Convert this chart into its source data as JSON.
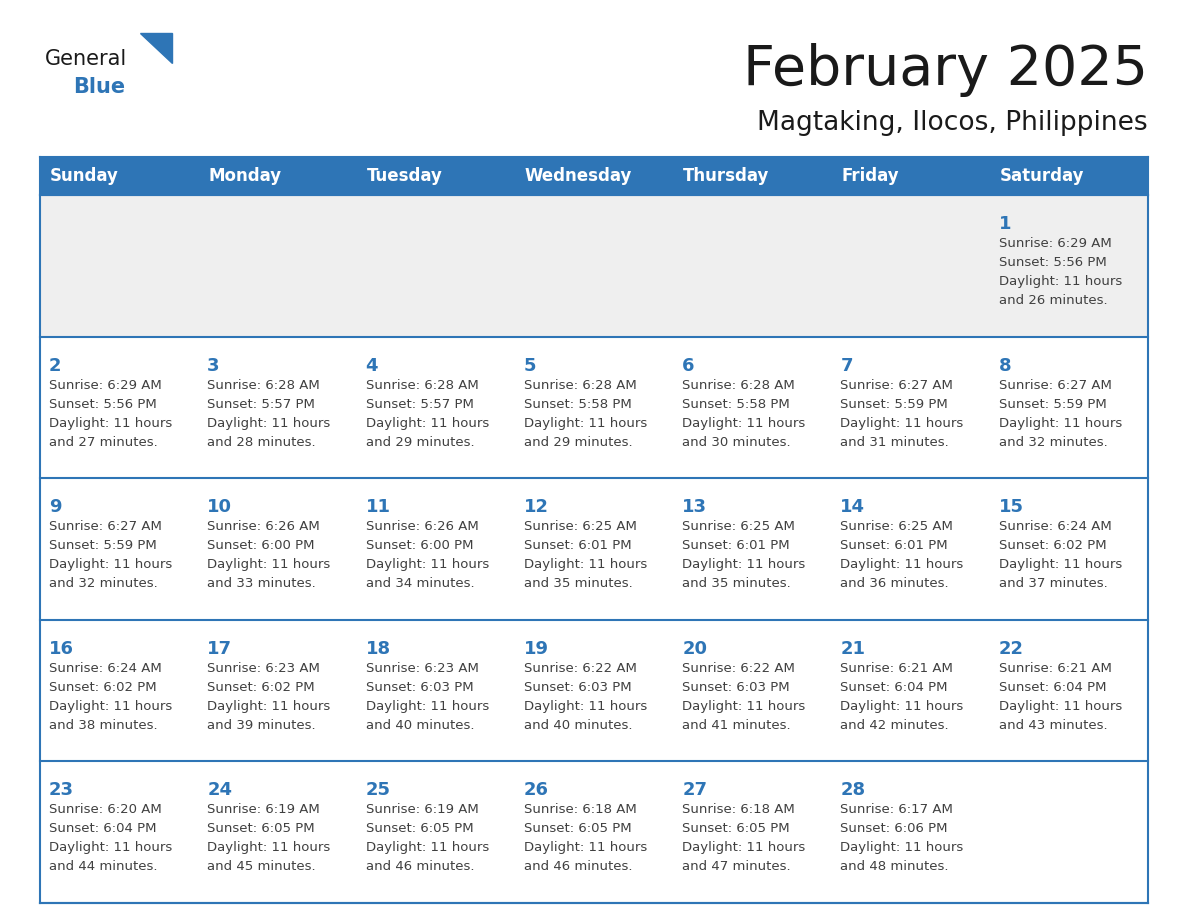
{
  "title": "February 2025",
  "subtitle": "Magtaking, Ilocos, Philippines",
  "days_of_week": [
    "Sunday",
    "Monday",
    "Tuesday",
    "Wednesday",
    "Thursday",
    "Friday",
    "Saturday"
  ],
  "header_bg": "#2e75b6",
  "header_text": "#ffffff",
  "cell_bg_light": "#efefef",
  "cell_bg_white": "#ffffff",
  "border_color": "#2e75b6",
  "day_num_color": "#2e75b6",
  "text_color": "#404040",
  "logo_general_color": "#1a1a1a",
  "logo_blue_color": "#2e75b6",
  "calendar_data": [
    [
      null,
      null,
      null,
      null,
      null,
      null,
      {
        "day": 1,
        "sunrise": "6:29 AM",
        "sunset": "5:56 PM",
        "daylight": "11 hours and 26 minutes."
      }
    ],
    [
      {
        "day": 2,
        "sunrise": "6:29 AM",
        "sunset": "5:56 PM",
        "daylight": "11 hours and 27 minutes."
      },
      {
        "day": 3,
        "sunrise": "6:28 AM",
        "sunset": "5:57 PM",
        "daylight": "11 hours and 28 minutes."
      },
      {
        "day": 4,
        "sunrise": "6:28 AM",
        "sunset": "5:57 PM",
        "daylight": "11 hours and 29 minutes."
      },
      {
        "day": 5,
        "sunrise": "6:28 AM",
        "sunset": "5:58 PM",
        "daylight": "11 hours and 29 minutes."
      },
      {
        "day": 6,
        "sunrise": "6:28 AM",
        "sunset": "5:58 PM",
        "daylight": "11 hours and 30 minutes."
      },
      {
        "day": 7,
        "sunrise": "6:27 AM",
        "sunset": "5:59 PM",
        "daylight": "11 hours and 31 minutes."
      },
      {
        "day": 8,
        "sunrise": "6:27 AM",
        "sunset": "5:59 PM",
        "daylight": "11 hours and 32 minutes."
      }
    ],
    [
      {
        "day": 9,
        "sunrise": "6:27 AM",
        "sunset": "5:59 PM",
        "daylight": "11 hours and 32 minutes."
      },
      {
        "day": 10,
        "sunrise": "6:26 AM",
        "sunset": "6:00 PM",
        "daylight": "11 hours and 33 minutes."
      },
      {
        "day": 11,
        "sunrise": "6:26 AM",
        "sunset": "6:00 PM",
        "daylight": "11 hours and 34 minutes."
      },
      {
        "day": 12,
        "sunrise": "6:25 AM",
        "sunset": "6:01 PM",
        "daylight": "11 hours and 35 minutes."
      },
      {
        "day": 13,
        "sunrise": "6:25 AM",
        "sunset": "6:01 PM",
        "daylight": "11 hours and 35 minutes."
      },
      {
        "day": 14,
        "sunrise": "6:25 AM",
        "sunset": "6:01 PM",
        "daylight": "11 hours and 36 minutes."
      },
      {
        "day": 15,
        "sunrise": "6:24 AM",
        "sunset": "6:02 PM",
        "daylight": "11 hours and 37 minutes."
      }
    ],
    [
      {
        "day": 16,
        "sunrise": "6:24 AM",
        "sunset": "6:02 PM",
        "daylight": "11 hours and 38 minutes."
      },
      {
        "day": 17,
        "sunrise": "6:23 AM",
        "sunset": "6:02 PM",
        "daylight": "11 hours and 39 minutes."
      },
      {
        "day": 18,
        "sunrise": "6:23 AM",
        "sunset": "6:03 PM",
        "daylight": "11 hours and 40 minutes."
      },
      {
        "day": 19,
        "sunrise": "6:22 AM",
        "sunset": "6:03 PM",
        "daylight": "11 hours and 40 minutes."
      },
      {
        "day": 20,
        "sunrise": "6:22 AM",
        "sunset": "6:03 PM",
        "daylight": "11 hours and 41 minutes."
      },
      {
        "day": 21,
        "sunrise": "6:21 AM",
        "sunset": "6:04 PM",
        "daylight": "11 hours and 42 minutes."
      },
      {
        "day": 22,
        "sunrise": "6:21 AM",
        "sunset": "6:04 PM",
        "daylight": "11 hours and 43 minutes."
      }
    ],
    [
      {
        "day": 23,
        "sunrise": "6:20 AM",
        "sunset": "6:04 PM",
        "daylight": "11 hours and 44 minutes."
      },
      {
        "day": 24,
        "sunrise": "6:19 AM",
        "sunset": "6:05 PM",
        "daylight": "11 hours and 45 minutes."
      },
      {
        "day": 25,
        "sunrise": "6:19 AM",
        "sunset": "6:05 PM",
        "daylight": "11 hours and 46 minutes."
      },
      {
        "day": 26,
        "sunrise": "6:18 AM",
        "sunset": "6:05 PM",
        "daylight": "11 hours and 46 minutes."
      },
      {
        "day": 27,
        "sunrise": "6:18 AM",
        "sunset": "6:05 PM",
        "daylight": "11 hours and 47 minutes."
      },
      {
        "day": 28,
        "sunrise": "6:17 AM",
        "sunset": "6:06 PM",
        "daylight": "11 hours and 48 minutes."
      },
      null
    ]
  ]
}
